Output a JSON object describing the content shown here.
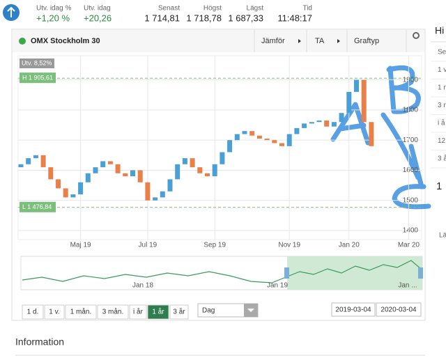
{
  "header": {
    "stats": [
      {
        "label": "Utv. idag %",
        "value": "+1,20 %"
      },
      {
        "label": "Utv. idag",
        "value": "+20,26"
      },
      {
        "label": "Senast",
        "value": "1 714,81"
      },
      {
        "label": "Högst",
        "value": "1 718,78"
      },
      {
        "label": "Lägst",
        "value": "1 687,33"
      },
      {
        "label": "Tid",
        "value": "11:48:17"
      }
    ]
  },
  "panel": {
    "title": "OMX Stockholm 30",
    "buttons": [
      "Jämför",
      "TA",
      "Graftyp"
    ]
  },
  "chart_data": {
    "type": "candlestick",
    "change_label": "Utv. 8,52%",
    "categories": [
      null,
      null,
      null,
      null,
      null,
      null,
      null,
      null,
      "Maj 19",
      null,
      null,
      null,
      null,
      null,
      null,
      null,
      null,
      "Jul 19",
      null,
      null,
      null,
      null,
      null,
      null,
      null,
      null,
      "Sep 19",
      null,
      null,
      null,
      null,
      null,
      null,
      null,
      null,
      null,
      "Nov 19",
      null,
      null,
      null,
      null,
      null,
      null,
      null,
      "Jan 20",
      null,
      null,
      null,
      null,
      null,
      null,
      null,
      "Mar 20"
    ],
    "open": [
      1610,
      1620,
      1640,
      1650,
      1610,
      1570,
      1540,
      1510,
      1520,
      1560,
      1590,
      1610,
      1630,
      1620,
      1590,
      1580,
      1600,
      1560,
      1500,
      1510,
      1530,
      1570,
      1620,
      1640,
      1610,
      1590,
      1580,
      1620,
      1660,
      1700,
      1720,
      1730,
      1715,
      1705,
      1700,
      1690,
      1680,
      1720,
      1740,
      1755,
      1760,
      1765,
      1745,
      1760,
      1790,
      1860,
      1900,
      1760,
      null,
      null,
      null,
      null,
      null
    ],
    "close": [
      1620,
      1640,
      1650,
      1610,
      1570,
      1540,
      1510,
      1520,
      1560,
      1590,
      1610,
      1630,
      1620,
      1590,
      1580,
      1600,
      1560,
      1500,
      1510,
      1530,
      1570,
      1620,
      1640,
      1610,
      1590,
      1580,
      1620,
      1660,
      1700,
      1720,
      1730,
      1715,
      1705,
      1700,
      1690,
      1680,
      1720,
      1740,
      1755,
      1760,
      1765,
      1745,
      1760,
      1790,
      1860,
      1900,
      1760,
      1680,
      null,
      null,
      null,
      null,
      null
    ],
    "up_color": "#4a9fd5",
    "down_color": "#e8804a",
    "ylim": [
      1370,
      1980
    ],
    "yticks": [
      1400,
      1500,
      1600,
      1700,
      1800,
      1900
    ],
    "grid": true,
    "reference_lines": [
      {
        "label": "H 1 905,61",
        "value": 1905.61
      },
      {
        "label": "L 1 476,84",
        "value": 1476.84
      }
    ],
    "navigator_labels": [
      "Jan 18",
      "Jan 19",
      "Jan ..."
    ]
  },
  "controls": {
    "periods": [
      "1 d.",
      "1 v.",
      "1 mån.",
      "3 mån.",
      "i år",
      "1 år",
      "3 år"
    ],
    "active": "1 år",
    "interval": "Dag",
    "from": "2019-03-04",
    "to": "2020-03-04"
  },
  "section": {
    "title": "Information"
  },
  "side_panel": {
    "title": "Hi",
    "rows": [
      "Se",
      "1 v",
      "1 m",
      "3 m",
      "i å",
      "12",
      "3 å"
    ],
    "extra": [
      "1",
      "Lä"
    ]
  }
}
